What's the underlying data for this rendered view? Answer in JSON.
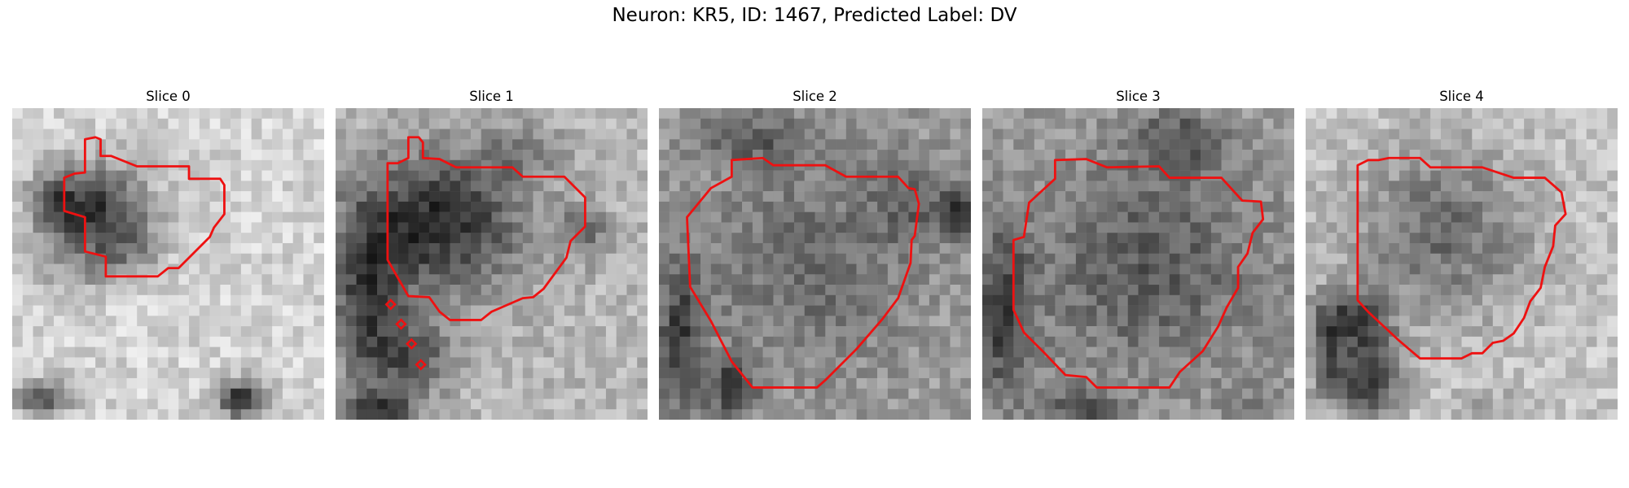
{
  "figure": {
    "title": "Neuron: KR5, ID: 1467, Predicted Label: DV",
    "colors": {
      "contour": "#ee1111",
      "background": "#ffffff",
      "colormap": "grayscale"
    }
  },
  "panels": [
    {
      "title": "Slice 0",
      "scene": "grainy grayscale micrograph: dark irregular cell body at left, light background, small dark blob at bottom center",
      "contour": "red outline around dark cell region"
    },
    {
      "title": "Slice 1",
      "scene": "grainy grayscale micrograph: large dark cell body filling upper left, dark lower left corner",
      "contour": "red outline around dark cell region, plus four small red diamond markers below it"
    },
    {
      "title": "Slice 2",
      "scene": "grainy grayscale micrograph: round medium-gray cell body centered with dark rim",
      "contour": "red outline tracing the round cell body"
    },
    {
      "title": "Slice 3",
      "scene": "grainy grayscale micrograph: round dark-gray cell body centered, dark left edge",
      "contour": "red outline tracing the round cell body"
    },
    {
      "title": "Slice 4",
      "scene": "grainy grayscale micrograph: gray cell body upper center, dark diagonal band at lower left",
      "contour": "red outline tracing the cell body"
    }
  ]
}
